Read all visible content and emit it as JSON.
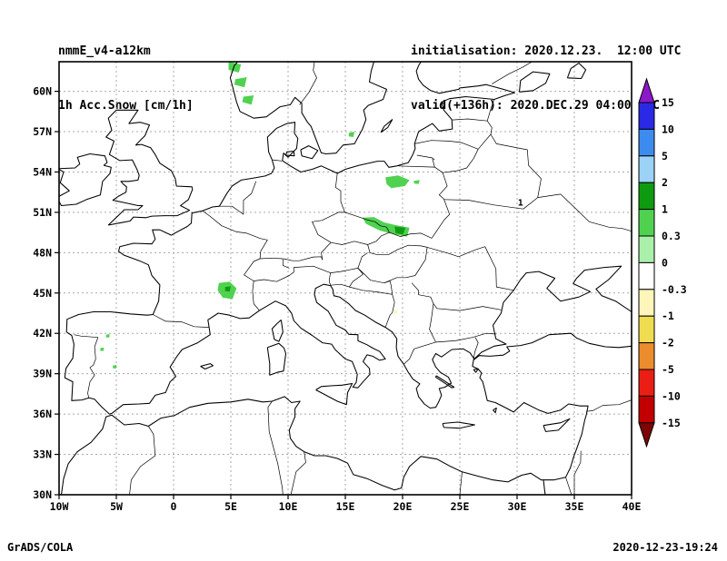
{
  "header": {
    "model": "nmmE_v4-a12km",
    "field": "1h Acc.Snow [cm/1h]",
    "init_label": "initialisation: 2020.12.23.  12:00 UTC",
    "valid_label": "valid(+136h): 2020.DEC.29 04:00 UTC"
  },
  "footer": {
    "left": "GrADS/COLA",
    "right": "2020-12-23-19:24"
  },
  "chart_data": {
    "type": "map",
    "title": "1h Acc.Snow [cm/1h]",
    "projection": "latlon",
    "region": "Europe",
    "lon_range": [
      -10,
      40
    ],
    "lat_range": [
      30,
      62.2
    ],
    "grid_style": "dashed",
    "grid_color": "#a8a8a8",
    "x_axis": {
      "tick_lons": [
        -10,
        -5,
        0,
        5,
        10,
        15,
        20,
        25,
        30,
        35,
        40
      ],
      "tick_labels": [
        "10W",
        "5W",
        "0",
        "5E",
        "10E",
        "15E",
        "20E",
        "25E",
        "30E",
        "35E",
        "40E"
      ]
    },
    "y_axis": {
      "tick_lats": [
        30,
        33,
        36,
        39,
        42,
        45,
        48,
        51,
        54,
        57,
        60
      ],
      "tick_labels": [
        "30N",
        "33N",
        "36N",
        "39N",
        "42N",
        "45N",
        "48N",
        "51N",
        "54N",
        "57N",
        "60N"
      ]
    },
    "colorbar": {
      "units": "cm/1h",
      "labels_top_to_bottom": [
        "15",
        "10",
        "5",
        "2",
        "1",
        "0.3",
        "0",
        "-0.3",
        "-1",
        "-2",
        "-5",
        "-10",
        "-15"
      ],
      "segments_top_to_bottom": [
        {
          "range": "above 15",
          "color": "#8d18c9",
          "cap": "top"
        },
        {
          "range": "10 to 15",
          "color": "#2a2ae6"
        },
        {
          "range": "5 to 10",
          "color": "#3c8cf0"
        },
        {
          "range": "2 to 5",
          "color": "#9cd2f5"
        },
        {
          "range": "1 to 2",
          "color": "#0f9b0f"
        },
        {
          "range": "0.3 to 1",
          "color": "#50d250"
        },
        {
          "range": "0 to 0.3",
          "color": "#aaf0aa"
        },
        {
          "range": "-0.3 to 0",
          "color": "#ffffff"
        },
        {
          "range": "-1 to -0.3",
          "color": "#fdf5b9"
        },
        {
          "range": "-2 to -1",
          "color": "#f0dc50"
        },
        {
          "range": "-5 to -2",
          "color": "#eb8c2d"
        },
        {
          "range": "-10 to -5",
          "color": "#ea1e14"
        },
        {
          "range": "-15 to -10",
          "color": "#c30000"
        },
        {
          "range": "below -15",
          "color": "#7d0505",
          "cap": "bottom"
        }
      ]
    },
    "snow_patches": [
      {
        "range": "0.3 to 1",
        "color": "#50d250",
        "polygon": [
          [
            4.8,
            62.2
          ],
          [
            5.9,
            62.0
          ],
          [
            5.7,
            61.4
          ],
          [
            4.8,
            61.6
          ]
        ]
      },
      {
        "range": "0.3 to 1",
        "color": "#50d250",
        "polygon": [
          [
            5.4,
            60.9
          ],
          [
            6.4,
            61.05
          ],
          [
            6.2,
            60.3
          ],
          [
            5.3,
            60.5
          ]
        ]
      },
      {
        "range": "0.3 to 1",
        "color": "#50d250",
        "polygon": [
          [
            6.1,
            59.6
          ],
          [
            7.0,
            59.7
          ],
          [
            6.8,
            59.0
          ],
          [
            6.0,
            59.2
          ]
        ]
      },
      {
        "range": "0.3 to 1",
        "color": "#50d250",
        "polygon": [
          [
            15.3,
            56.9
          ],
          [
            15.8,
            57.0
          ],
          [
            15.7,
            56.6
          ],
          [
            15.3,
            56.65
          ]
        ]
      },
      {
        "range": "0.3 to 1",
        "color": "#50d250",
        "polygon": [
          [
            18.5,
            53.6
          ],
          [
            19.6,
            53.75
          ],
          [
            20.6,
            53.4
          ],
          [
            20.2,
            52.95
          ],
          [
            19.0,
            52.8
          ],
          [
            18.6,
            53.1
          ]
        ]
      },
      {
        "range": "0.3 to 1",
        "color": "#50d250",
        "polygon": [
          [
            21.0,
            53.35
          ],
          [
            21.5,
            53.4
          ],
          [
            21.4,
            53.1
          ],
          [
            21.0,
            53.15
          ]
        ]
      },
      {
        "range": "0.3 to 1",
        "color": "#50d250",
        "polygon": [
          [
            16.5,
            50.6
          ],
          [
            17.5,
            50.65
          ],
          [
            18.4,
            50.25
          ],
          [
            19.4,
            50.05
          ],
          [
            20.6,
            49.85
          ],
          [
            20.4,
            49.2
          ],
          [
            19.3,
            49.35
          ],
          [
            18.0,
            49.65
          ],
          [
            16.8,
            50.15
          ]
        ]
      },
      {
        "range": "1 to 2",
        "color": "#0f9b0f",
        "polygon": [
          [
            19.3,
            49.95
          ],
          [
            20.25,
            49.85
          ],
          [
            20.05,
            49.35
          ],
          [
            19.4,
            49.45
          ]
        ]
      },
      {
        "range": "0.3 to 1",
        "color": "#50d250",
        "polygon": [
          [
            3.95,
            45.75
          ],
          [
            4.9,
            45.85
          ],
          [
            5.5,
            45.35
          ],
          [
            5.15,
            44.55
          ],
          [
            4.3,
            44.65
          ],
          [
            3.85,
            45.2
          ]
        ]
      },
      {
        "range": "1 to 2",
        "color": "#0f9b0f",
        "polygon": [
          [
            4.5,
            45.45
          ],
          [
            5.0,
            45.5
          ],
          [
            4.9,
            45.1
          ],
          [
            4.5,
            45.15
          ]
        ]
      },
      {
        "range": "0.3 to 1",
        "color": "#50d250",
        "polygon": [
          [
            -6.4,
            40.9
          ],
          [
            -6.1,
            40.95
          ],
          [
            -6.1,
            40.7
          ],
          [
            -6.4,
            40.7
          ]
        ]
      },
      {
        "range": "0.3 to 1",
        "color": "#50d250",
        "polygon": [
          [
            -5.3,
            39.6
          ],
          [
            -5.0,
            39.65
          ],
          [
            -5.0,
            39.4
          ],
          [
            -5.3,
            39.4
          ]
        ]
      },
      {
        "range": "0.3 to 1",
        "color": "#50d250",
        "polygon": [
          [
            -5.9,
            41.9
          ],
          [
            -5.6,
            41.95
          ],
          [
            -5.6,
            41.7
          ],
          [
            -5.9,
            41.7
          ]
        ]
      },
      {
        "range": "-1 to -0.3",
        "color": "#fdf5b9",
        "polygon": [
          [
            19.2,
            43.7
          ],
          [
            19.55,
            43.75
          ],
          [
            19.5,
            43.45
          ],
          [
            19.2,
            43.5
          ]
        ]
      }
    ],
    "contour_labels": [
      {
        "text": "1",
        "lon": 30.3,
        "lat": 51.5
      }
    ]
  }
}
